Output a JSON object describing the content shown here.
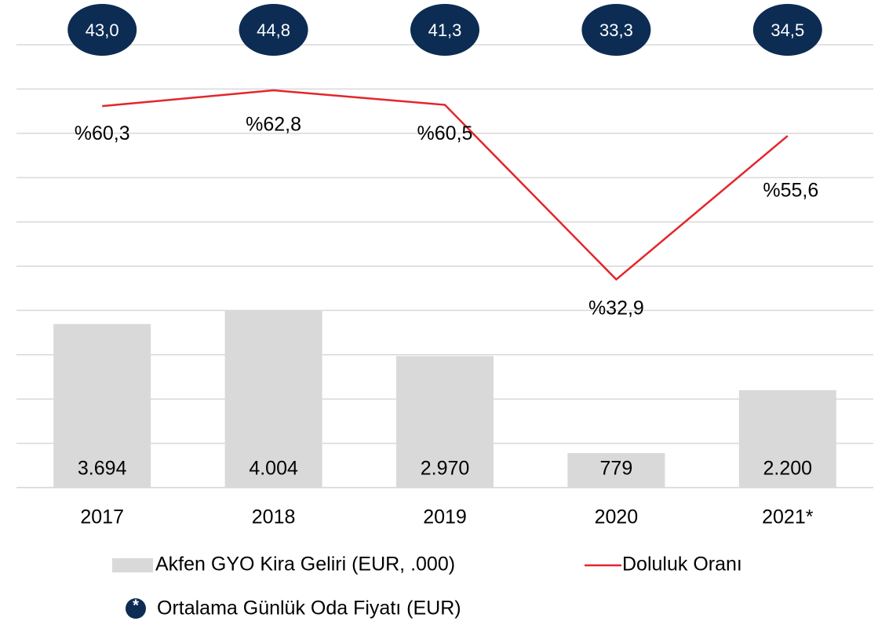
{
  "chart_data": {
    "type": "bar",
    "categories": [
      "2017",
      "2018",
      "2019",
      "2020",
      "2021*"
    ],
    "series": [
      {
        "name": "Akfen GYO Kira Geliri (EUR, .000)",
        "type": "bar",
        "color": "#d9d9d9",
        "values": [
          3694,
          4004,
          2970,
          779,
          2200
        ],
        "value_labels": [
          "3.694",
          "4.004",
          "2.970",
          "779",
          "2.200"
        ]
      },
      {
        "name": "Doluluk Oranı",
        "type": "line",
        "axis": "y2",
        "color": "#e3262b",
        "values": [
          60.3,
          62.8,
          60.5,
          32.9,
          55.6
        ],
        "value_labels": [
          "%60,3",
          "%62,8",
          "%60,5",
          "%32,9",
          "%55,6"
        ]
      },
      {
        "name": "Ortalama Günlük Oda Fiyatı (EUR)",
        "type": "circle",
        "color": "#0d2c54",
        "marker_label": "*",
        "values": [
          43.0,
          44.8,
          41.3,
          33.3,
          34.5
        ],
        "value_labels": [
          "43,0",
          "44,8",
          "41,3",
          "33,3",
          "34,5"
        ]
      }
    ],
    "ylim": [
      0,
      10000
    ],
    "yticks": [
      0,
      1000,
      2000,
      3000,
      4000,
      5000,
      6000,
      7000,
      8000,
      9000,
      10000
    ],
    "y2lim": [
      0,
      70
    ],
    "grid": true
  }
}
